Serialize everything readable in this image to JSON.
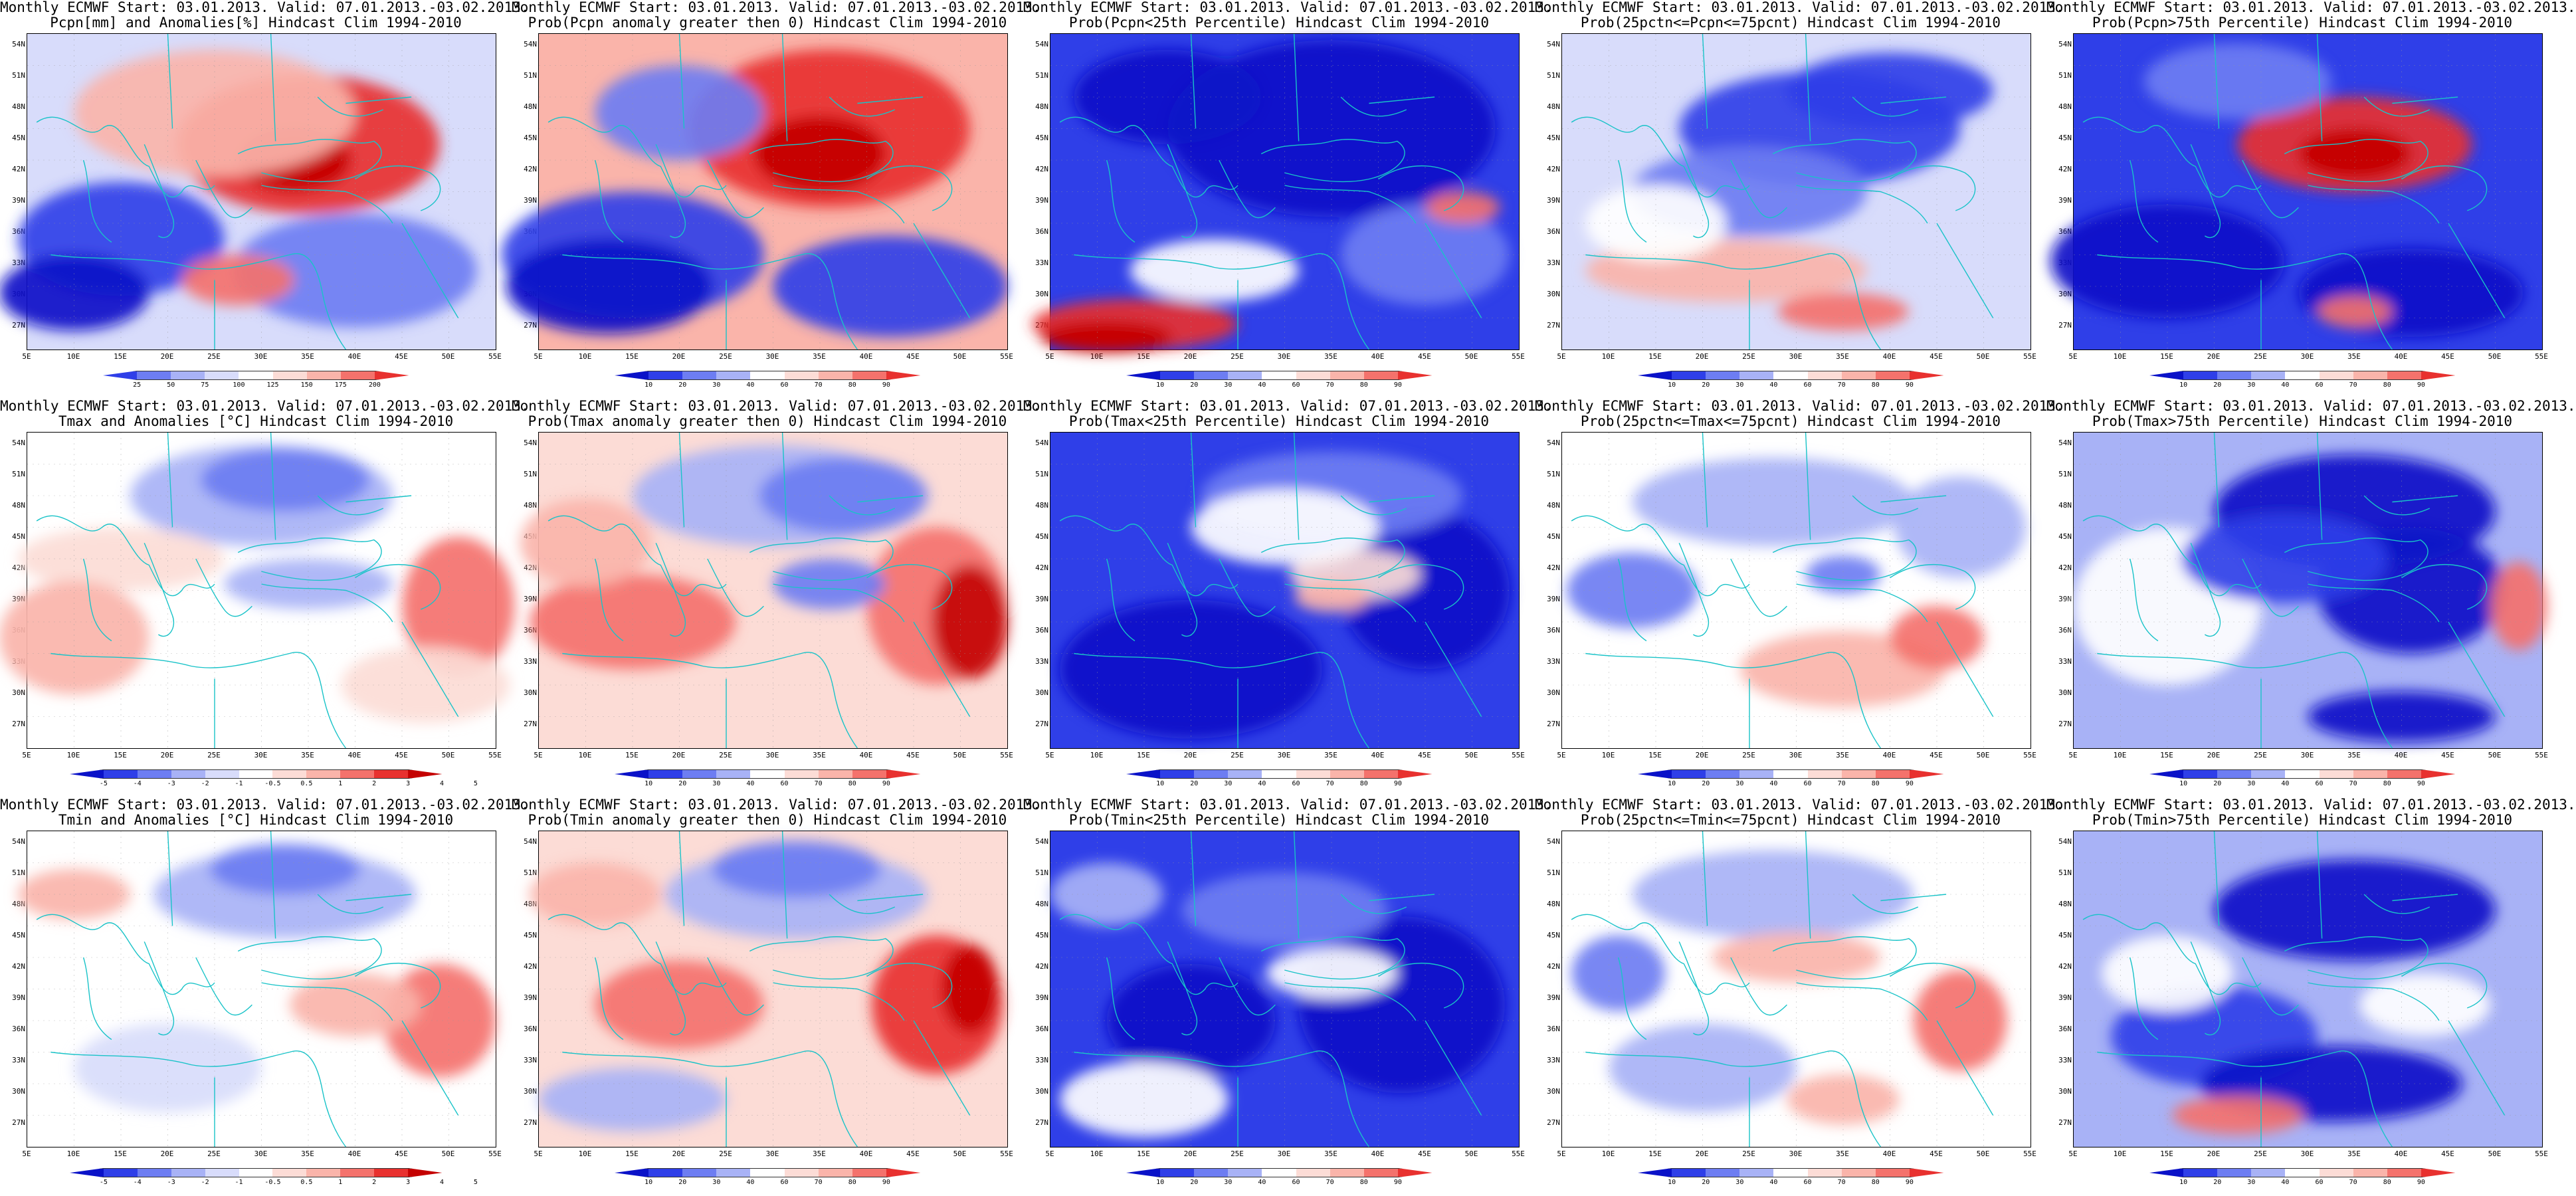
{
  "colors": {
    "red_dark": "#c40000",
    "red": "#e8312f",
    "red_mid": "#f4726c",
    "red_light": "#fab4aa",
    "red_pale": "#fcdcd6",
    "blue_dark": "#0a12c8",
    "blue": "#2f3fe8",
    "blue_mid": "#6d7df2",
    "blue_light": "#a8b2f6",
    "blue_pale": "#d8dcfb",
    "white": "#ffffff",
    "coast": "#19c3c8",
    "contour": "#333333"
  },
  "axes": {
    "lat_labels": [
      "54N",
      "51N",
      "48N",
      "45N",
      "42N",
      "39N",
      "36N",
      "33N",
      "30N",
      "27N"
    ],
    "lon_labels": [
      "5E",
      "10E",
      "15E",
      "20E",
      "25E",
      "30E",
      "35E",
      "40E",
      "45E",
      "50E",
      "55E"
    ]
  },
  "colorbars": {
    "pcpn_anom": [
      "25",
      "50",
      "75",
      "100",
      "125",
      "150",
      "175",
      "200"
    ],
    "prob": [
      "10",
      "20",
      "30",
      "40",
      "60",
      "70",
      "80",
      "90"
    ],
    "temp_anom": [
      "-5",
      "-4",
      "-3",
      "-2",
      "-1",
      "-0.5",
      "0.5",
      "1",
      "2",
      "3",
      "4",
      "5"
    ]
  },
  "panels": [
    {
      "row": 0,
      "col": 0,
      "line1": "Monthly ECMWF Start: 03.01.2013. Valid: 07.01.2013.-03.02.2013.",
      "line2": "Pcpn[mm] and Anomalies[%] Hindcast Clim 1994-2010",
      "cbar": "pcpn_anom",
      "bg": "blue_pale",
      "blobs": [
        [
          "red",
          60,
          35,
          28,
          22
        ],
        [
          "red_dark",
          57,
          40,
          12,
          10
        ],
        [
          "red_light",
          40,
          25,
          30,
          20
        ],
        [
          "blue",
          20,
          65,
          22,
          18
        ],
        [
          "blue_dark",
          10,
          82,
          16,
          12
        ],
        [
          "blue_mid",
          70,
          75,
          26,
          18
        ],
        [
          "red_mid",
          45,
          78,
          12,
          8
        ]
      ]
    },
    {
      "row": 0,
      "col": 1,
      "line1": "Monthly ECMWF Start: 03.01.2013. Valid: 07.01.2013.-03.02.2013.",
      "line2": "Prob(Pcpn anomaly greater then 0) Hindcast Clim 1994-2010",
      "cbar": "prob",
      "bg": "red_light",
      "blobs": [
        [
          "red",
          62,
          30,
          30,
          25
        ],
        [
          "red_dark",
          60,
          38,
          14,
          12
        ],
        [
          "blue",
          20,
          70,
          28,
          20
        ],
        [
          "blue_dark",
          15,
          80,
          22,
          15
        ],
        [
          "blue",
          75,
          80,
          25,
          16
        ],
        [
          "blue_mid",
          30,
          25,
          18,
          15
        ]
      ]
    },
    {
      "row": 0,
      "col": 2,
      "line1": "Monthly ECMWF Start: 03.01.2013. Valid: 07.01.2013.-03.02.2013.",
      "line2": "Prob(Pcpn<25th Percentile) Hindcast Clim 1994-2010",
      "cbar": "prob",
      "bg": "blue",
      "blobs": [
        [
          "blue_dark",
          60,
          30,
          35,
          28
        ],
        [
          "blue_dark",
          25,
          20,
          20,
          15
        ],
        [
          "red",
          18,
          92,
          22,
          8
        ],
        [
          "red_dark",
          12,
          96,
          14,
          5
        ],
        [
          "white",
          35,
          75,
          18,
          10
        ],
        [
          "blue_mid",
          80,
          70,
          18,
          16
        ],
        [
          "red_mid",
          88,
          55,
          8,
          5
        ]
      ]
    },
    {
      "row": 0,
      "col": 3,
      "line1": "Monthly ECMWF Start: 03.01.2013. Valid: 07.01.2013.-03.02.2013.",
      "line2": "Prob(25pctn<=Pcpn<=75pcnt) Hindcast Clim 1994-2010",
      "cbar": "prob",
      "bg": "blue_pale",
      "blobs": [
        [
          "blue",
          55,
          30,
          30,
          18
        ],
        [
          "blue_mid",
          40,
          50,
          25,
          14
        ],
        [
          "red_light",
          35,
          75,
          30,
          10
        ],
        [
          "red_mid",
          60,
          88,
          14,
          6
        ],
        [
          "blue",
          70,
          18,
          22,
          12
        ],
        [
          "white",
          20,
          60,
          15,
          12
        ]
      ]
    },
    {
      "row": 0,
      "col": 4,
      "line1": "Monthly ECMWF Start: 03.01.2013. Valid: 07.01.2013.-03.02.2013.",
      "line2": "Prob(Pcpn>75th Percentile) Hindcast Clim 1994-2010",
      "cbar": "prob",
      "bg": "blue",
      "blobs": [
        [
          "red",
          60,
          35,
          25,
          15
        ],
        [
          "red_dark",
          60,
          38,
          12,
          8
        ],
        [
          "blue_dark",
          20,
          72,
          25,
          18
        ],
        [
          "blue_dark",
          72,
          82,
          24,
          14
        ],
        [
          "blue_mid",
          35,
          15,
          20,
          12
        ],
        [
          "red_mid",
          60,
          88,
          8,
          5
        ]
      ]
    },
    {
      "row": 1,
      "col": 0,
      "line1": "Monthly ECMWF Start: 03.01.2013. Valid: 07.01.2013.-03.02.2013.",
      "line2": "Tmax and Anomalies [°C] Hindcast Clim 1994-2010",
      "cbar": "temp_anom",
      "bg": "white",
      "blobs": [
        [
          "blue_light",
          50,
          20,
          28,
          16
        ],
        [
          "blue_mid",
          55,
          15,
          18,
          10
        ],
        [
          "red_pale",
          20,
          40,
          22,
          10
        ],
        [
          "red_light",
          10,
          65,
          16,
          18
        ],
        [
          "red_mid",
          92,
          55,
          12,
          22
        ],
        [
          "blue_light",
          60,
          48,
          18,
          8
        ],
        [
          "red_pale",
          85,
          80,
          18,
          12
        ]
      ]
    },
    {
      "row": 1,
      "col": 1,
      "line1": "Monthly ECMWF Start: 03.01.2013. Valid: 07.01.2013.-03.02.2013.",
      "line2": "Prob(Tmax anomaly greater then 0) Hindcast Clim 1994-2010",
      "cbar": "prob",
      "bg": "red_pale",
      "blobs": [
        [
          "blue_light",
          50,
          20,
          30,
          16
        ],
        [
          "blue_mid",
          65,
          20,
          18,
          12
        ],
        [
          "red_mid",
          20,
          60,
          22,
          15
        ],
        [
          "red_mid",
          85,
          55,
          15,
          25
        ],
        [
          "red_dark",
          92,
          60,
          8,
          18
        ],
        [
          "blue_mid",
          62,
          48,
          12,
          8
        ],
        [
          "red_light",
          10,
          35,
          14,
          14
        ]
      ]
    },
    {
      "row": 1,
      "col": 2,
      "line1": "Monthly ECMWF Start: 03.01.2013. Valid: 07.01.2013.-03.02.2013.",
      "line2": "Prob(Tmax<25th Percentile) Hindcast Clim 1994-2010",
      "cbar": "prob",
      "bg": "blue",
      "blobs": [
        [
          "blue_dark",
          30,
          75,
          28,
          22
        ],
        [
          "blue_dark",
          80,
          50,
          18,
          25
        ],
        [
          "blue_mid",
          60,
          20,
          28,
          14
        ],
        [
          "red_pale",
          65,
          45,
          14,
          8
        ],
        [
          "white",
          50,
          30,
          20,
          12
        ],
        [
          "red_light",
          60,
          52,
          8,
          5
        ]
      ]
    },
    {
      "row": 1,
      "col": 3,
      "line1": "Monthly ECMWF Start: 03.01.2013. Valid: 07.01.2013.-03.02.2013.",
      "line2": "Prob(25pctn<=Tmax<=75pcnt) Hindcast Clim 1994-2010",
      "cbar": "prob",
      "bg": "white",
      "blobs": [
        [
          "blue_light",
          45,
          22,
          30,
          14
        ],
        [
          "blue_mid",
          15,
          50,
          14,
          12
        ],
        [
          "red_light",
          60,
          75,
          22,
          12
        ],
        [
          "red_mid",
          80,
          65,
          10,
          10
        ],
        [
          "blue_light",
          85,
          30,
          14,
          16
        ],
        [
          "blue_mid",
          60,
          45,
          8,
          6
        ]
      ]
    },
    {
      "row": 1,
      "col": 4,
      "line1": "Monthly ECMWF Start: 03.01.2013. Valid: 07.01.2013.-03.02.2013.",
      "line2": "Prob(Tmax>75th Percentile) Hindcast Clim 1994-2010",
      "cbar": "prob",
      "bg": "blue_light",
      "blobs": [
        [
          "blue_dark",
          60,
          25,
          30,
          18
        ],
        [
          "blue_dark",
          72,
          50,
          20,
          20
        ],
        [
          "white",
          20,
          55,
          20,
          25
        ],
        [
          "red_mid",
          95,
          55,
          6,
          14
        ],
        [
          "blue",
          45,
          40,
          22,
          14
        ],
        [
          "blue_dark",
          70,
          90,
          20,
          8
        ]
      ]
    },
    {
      "row": 2,
      "col": 0,
      "line1": "Monthly ECMWF Start: 03.01.2013. Valid: 07.01.2013.-03.02.2013.",
      "line2": "Tmin and Anomalies [°C] Hindcast Clim 1994-2010",
      "cbar": "temp_anom",
      "bg": "white",
      "blobs": [
        [
          "blue_light",
          55,
          20,
          28,
          14
        ],
        [
          "blue_mid",
          55,
          12,
          16,
          8
        ],
        [
          "red_light",
          10,
          20,
          12,
          8
        ],
        [
          "red_mid",
          88,
          60,
          12,
          18
        ],
        [
          "red_light",
          70,
          55,
          14,
          10
        ],
        [
          "blue_pale",
          30,
          75,
          20,
          14
        ]
      ]
    },
    {
      "row": 2,
      "col": 1,
      "line1": "Monthly ECMWF Start: 03.01.2013. Valid: 07.01.2013.-03.02.2013.",
      "line2": "Prob(Tmin anomaly greater then 0) Hindcast Clim 1994-2010",
      "cbar": "prob",
      "bg": "red_pale",
      "blobs": [
        [
          "blue_light",
          55,
          20,
          28,
          14
        ],
        [
          "blue_mid",
          55,
          12,
          18,
          9
        ],
        [
          "red_mid",
          30,
          55,
          18,
          14
        ],
        [
          "red",
          85,
          55,
          14,
          22
        ],
        [
          "red_dark",
          92,
          50,
          6,
          14
        ],
        [
          "red_light",
          12,
          20,
          14,
          10
        ],
        [
          "blue_light",
          20,
          85,
          20,
          10
        ]
      ]
    },
    {
      "row": 2,
      "col": 2,
      "line1": "Monthly ECMWF Start: 03.01.2013. Valid: 07.01.2013.-03.02.2013.",
      "line2": "Prob(Tmin<25th Percentile) Hindcast Clim 1994-2010",
      "cbar": "prob",
      "bg": "blue",
      "blobs": [
        [
          "blue_dark",
          75,
          55,
          22,
          28
        ],
        [
          "blue_dark",
          30,
          60,
          18,
          18
        ],
        [
          "white",
          20,
          85,
          18,
          12
        ],
        [
          "white",
          60,
          45,
          14,
          8
        ],
        [
          "blue_mid",
          50,
          25,
          22,
          12
        ],
        [
          "blue_light",
          12,
          20,
          12,
          10
        ]
      ]
    },
    {
      "row": 2,
      "col": 3,
      "line1": "Monthly ECMWF Start: 03.01.2013. Valid: 07.01.2013.-03.02.2013.",
      "line2": "Prob(25pctn<=Tmin<=75pcnt) Hindcast Clim 1994-2010",
      "cbar": "prob",
      "bg": "white",
      "blobs": [
        [
          "blue_light",
          45,
          20,
          30,
          14
        ],
        [
          "blue_mid",
          12,
          45,
          10,
          12
        ],
        [
          "red_light",
          50,
          40,
          18,
          8
        ],
        [
          "red_mid",
          85,
          60,
          10,
          16
        ],
        [
          "blue_light",
          30,
          75,
          20,
          14
        ],
        [
          "red_light",
          60,
          85,
          12,
          8
        ]
      ]
    },
    {
      "row": 2,
      "col": 4,
      "line1": "Monthly ECMWF Start: 03.01.2013. Valid: 07.01.2013.-03.02.2013.",
      "line2": "Prob(Tmin>75th Percentile) Hindcast Clim 1994-2010",
      "cbar": "prob",
      "bg": "blue_light",
      "blobs": [
        [
          "blue_dark",
          60,
          25,
          30,
          16
        ],
        [
          "blue",
          30,
          65,
          22,
          16
        ],
        [
          "blue_dark",
          55,
          80,
          28,
          12
        ],
        [
          "red_mid",
          35,
          90,
          14,
          6
        ],
        [
          "white",
          20,
          45,
          14,
          12
        ],
        [
          "white",
          75,
          55,
          14,
          10
        ]
      ]
    }
  ]
}
